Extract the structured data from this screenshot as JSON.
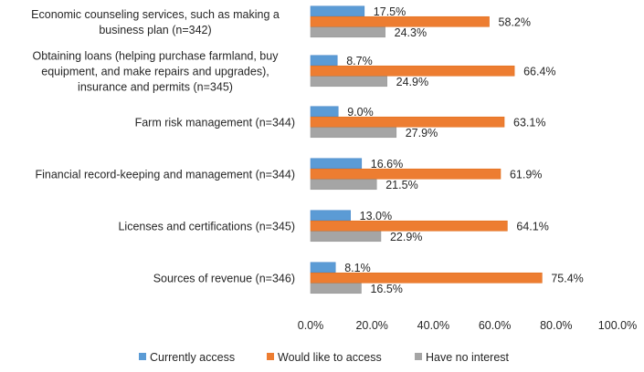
{
  "chart_data": {
    "type": "bar",
    "orientation": "horizontal",
    "title": "",
    "xlabel": "",
    "ylabel": "",
    "xlim": [
      0,
      100
    ],
    "grid": false,
    "legend_position": "bottom",
    "categories": [
      [
        "Economic counseling services, such as making a",
        "business plan (n=342)"
      ],
      [
        "Obtaining loans (helping purchase farmland, buy",
        "equipment, and make repairs and upgrades),",
        "insurance and permits (n=345)"
      ],
      [
        "Farm risk management (n=344)"
      ],
      [
        "Financial record-keeping and management (n=344)"
      ],
      [
        "Licenses and certifications (n=345)"
      ],
      [
        "Sources of revenue (n=346)"
      ]
    ],
    "series": [
      {
        "name": "Currently access",
        "color": "#5b9bd5",
        "values": [
          17.5,
          8.7,
          9.0,
          16.6,
          13.0,
          8.1
        ],
        "labels": [
          "17.5%",
          "8.7%",
          "9.0%",
          "16.6%",
          "13.0%",
          "8.1%"
        ]
      },
      {
        "name": "Would like to access",
        "color": "#ed7d31",
        "values": [
          58.2,
          66.4,
          63.1,
          61.9,
          64.1,
          75.4
        ],
        "labels": [
          "58.2%",
          "66.4%",
          "63.1%",
          "61.9%",
          "64.1%",
          "75.4%"
        ]
      },
      {
        "name": "Have no interest",
        "color": "#a5a5a5",
        "values": [
          24.3,
          24.9,
          27.9,
          21.5,
          22.9,
          16.5
        ],
        "labels": [
          "24.3%",
          "24.9%",
          "27.9%",
          "21.5%",
          "22.9%",
          "16.5%"
        ]
      }
    ],
    "x_ticks": [
      0,
      20,
      40,
      60,
      80,
      100
    ],
    "x_tick_labels": [
      "0.0%",
      "20.0%",
      "40.0%",
      "60.0%",
      "80.0%",
      "100.0%"
    ]
  }
}
